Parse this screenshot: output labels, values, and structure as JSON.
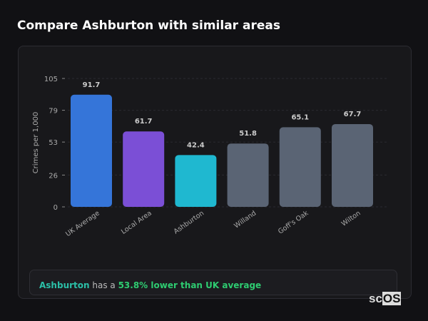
{
  "title": "Compare Ashburton with similar areas",
  "chart_data": {
    "type": "bar",
    "categories": [
      "UK Average",
      "Local Area",
      "Ashburton",
      "Willand",
      "Goff's Oak",
      "Wilton"
    ],
    "values": [
      91.7,
      61.7,
      42.4,
      51.8,
      65.1,
      67.7
    ],
    "colors": [
      "#3575d9",
      "#7b4fd6",
      "#1fb8d0",
      "#5a6474",
      "#5a6474",
      "#5a6474"
    ],
    "ylabel": "Crimes per 1,000",
    "yticks": [
      0,
      26,
      53,
      79,
      105
    ],
    "ylim": [
      0,
      105
    ],
    "grid": true
  },
  "note": {
    "area": "Ashburton",
    "middle": " has a ",
    "comparison": "53.8% lower than UK average"
  },
  "logo": "scOS"
}
